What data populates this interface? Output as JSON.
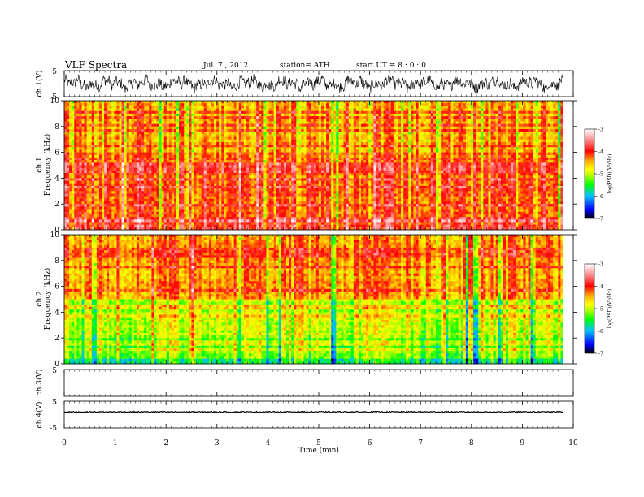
{
  "header": {
    "title": "VLF  Spectra",
    "date": "Jul.  7  , 2012",
    "station": "station= ATH",
    "start": "start  UT =   8  : 0  : 0"
  },
  "colors": {
    "colorbar_stops": [
      "#000000",
      "#0000ff",
      "#00bfff",
      "#00ff00",
      "#b0ff00",
      "#ffff00",
      "#ffa500",
      "#ff0000",
      "#ff9090",
      "#ffffff"
    ],
    "waveform": "#000000"
  },
  "chart_data": [
    {
      "id": "ch1-waveform",
      "type": "line",
      "ylabel": "ch.1(V)",
      "ylim": [
        -5,
        5
      ],
      "yticks": [
        "5",
        "-5"
      ],
      "xlim": [
        0,
        10
      ],
      "series": [
        {
          "values_range": [
            -3.5,
            3.5
          ],
          "duration_min": 9.8
        }
      ]
    },
    {
      "id": "ch1-spectrogram",
      "type": "heatmap",
      "ylabel": "ch.1\nFrequency  (kHz)",
      "ylabel_lines": [
        "ch.1",
        "Frequency  (kHz)"
      ],
      "ylim": [
        0,
        10
      ],
      "yticks": [
        "0",
        "2",
        "4",
        "6",
        "8",
        "10"
      ],
      "xlim": [
        0,
        10
      ],
      "colorbar": {
        "label": "log(PSD)(V²/Hz)",
        "range": [
          -7,
          -3
        ],
        "ticks": [
          "-3",
          "-4",
          "-5",
          "-6",
          "-7"
        ]
      },
      "dominant_levels": [
        {
          "freq_range_khz": [
            0,
            1
          ],
          "log_psd": -4.0
        },
        {
          "freq_range_khz": [
            1,
            6
          ],
          "log_psd": -4.2
        },
        {
          "freq_range_khz": [
            6,
            10
          ],
          "log_psd": -4.5
        }
      ]
    },
    {
      "id": "ch2-spectrogram",
      "type": "heatmap",
      "ylabel": "ch.2\nFrequency  (kHz)",
      "ylabel_lines": [
        "ch.2",
        "Frequency  (kHz)"
      ],
      "ylim": [
        0,
        10
      ],
      "yticks": [
        "0",
        "2",
        "4",
        "6",
        "8",
        "10"
      ],
      "xlim": [
        0,
        10
      ],
      "colorbar": {
        "label": "log(PSD)(V²/Hz)",
        "range": [
          -7,
          -3
        ],
        "ticks": [
          "-3",
          "-4",
          "-5",
          "-6",
          "-7"
        ]
      },
      "dominant_levels": [
        {
          "freq_range_khz": [
            0,
            2
          ],
          "log_psd": -5.3
        },
        {
          "freq_range_khz": [
            2,
            5
          ],
          "log_psd": -5.0
        },
        {
          "freq_range_khz": [
            5,
            10
          ],
          "log_psd": -4.4
        }
      ]
    },
    {
      "id": "ch3-waveform",
      "type": "line",
      "ylabel": "ch.3(V)",
      "ylim": [
        -5,
        5
      ],
      "yticks": [
        "5"
      ],
      "xlim": [
        0,
        10
      ],
      "series": []
    },
    {
      "id": "ch4-waveform",
      "type": "line",
      "ylabel": "ch.4(V)",
      "ylim": [
        -5,
        5
      ],
      "yticks": [
        "5",
        "-5"
      ],
      "xlim": [
        0,
        10
      ],
      "series": [
        {
          "values_range": [
            0.8,
            1.2
          ],
          "duration_min": 9.8
        }
      ]
    }
  ],
  "xaxis": {
    "label": "Time  (min)",
    "ticks": [
      "0",
      "1",
      "2",
      "3",
      "4",
      "5",
      "6",
      "7",
      "8",
      "9",
      "10"
    ]
  }
}
